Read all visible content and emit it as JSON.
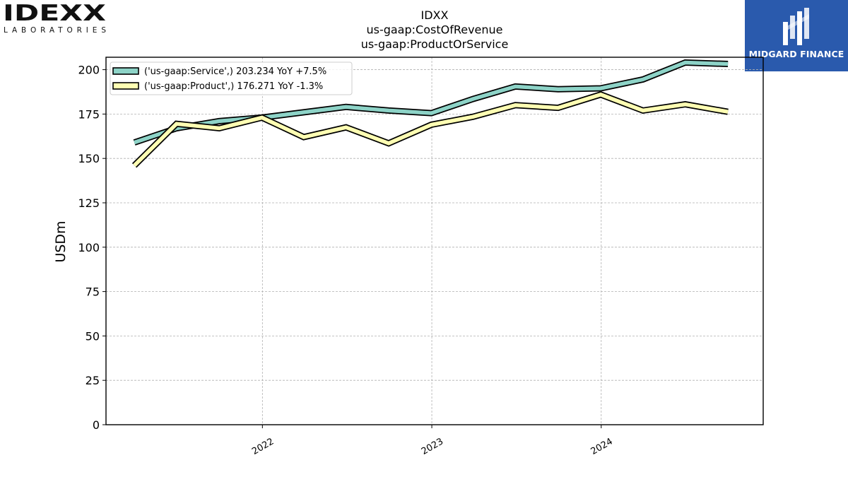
{
  "header": {
    "left_logo": {
      "name": "IDEXX",
      "subtitle": "LABORATORIES"
    },
    "right_logo": {
      "name": "MIDGARD FINANCE",
      "color": "#2a5aad"
    }
  },
  "chart_data": {
    "type": "line",
    "title_lines": [
      "IDXX",
      "us-gaap:CostOfRevenue",
      "us-gaap:ProductOrService"
    ],
    "xlabel": "",
    "ylabel": "USDm",
    "ylim": [
      0,
      207
    ],
    "yticks": [
      0,
      25,
      50,
      75,
      100,
      125,
      150,
      175,
      200
    ],
    "xlim": [
      "2021-01-29",
      "2024-12-15"
    ],
    "xticks": [
      {
        "label": "2022",
        "date": "2022-01-01"
      },
      {
        "label": "2023",
        "date": "2023-01-01"
      },
      {
        "label": "2024",
        "date": "2024-01-01"
      }
    ],
    "grid": true,
    "legend_position": "top-left",
    "x": [
      "2021-03-31",
      "2021-06-30",
      "2021-09-30",
      "2021-12-31",
      "2022-03-31",
      "2022-06-30",
      "2022-09-30",
      "2022-12-31",
      "2023-03-31",
      "2023-06-30",
      "2023-09-30",
      "2023-12-31",
      "2024-03-31",
      "2024-06-30",
      "2024-09-30"
    ],
    "series": [
      {
        "name": "('us-gaap:Service',) 203.234 YoY +7.5%",
        "color": "#8dd3c7",
        "values": [
          159,
          167,
          171,
          173,
          176,
          179,
          177,
          175.5,
          183.5,
          190.5,
          189,
          189.5,
          194.5,
          204,
          203.234
        ]
      },
      {
        "name": "('us-gaap:Product',) 176.271 YoY -1.3%",
        "color": "#ffffb3",
        "values": [
          146,
          169.5,
          167,
          173,
          162,
          167.5,
          158.5,
          169,
          173.5,
          180,
          178.5,
          186,
          177,
          180.5,
          176.271
        ]
      }
    ]
  }
}
